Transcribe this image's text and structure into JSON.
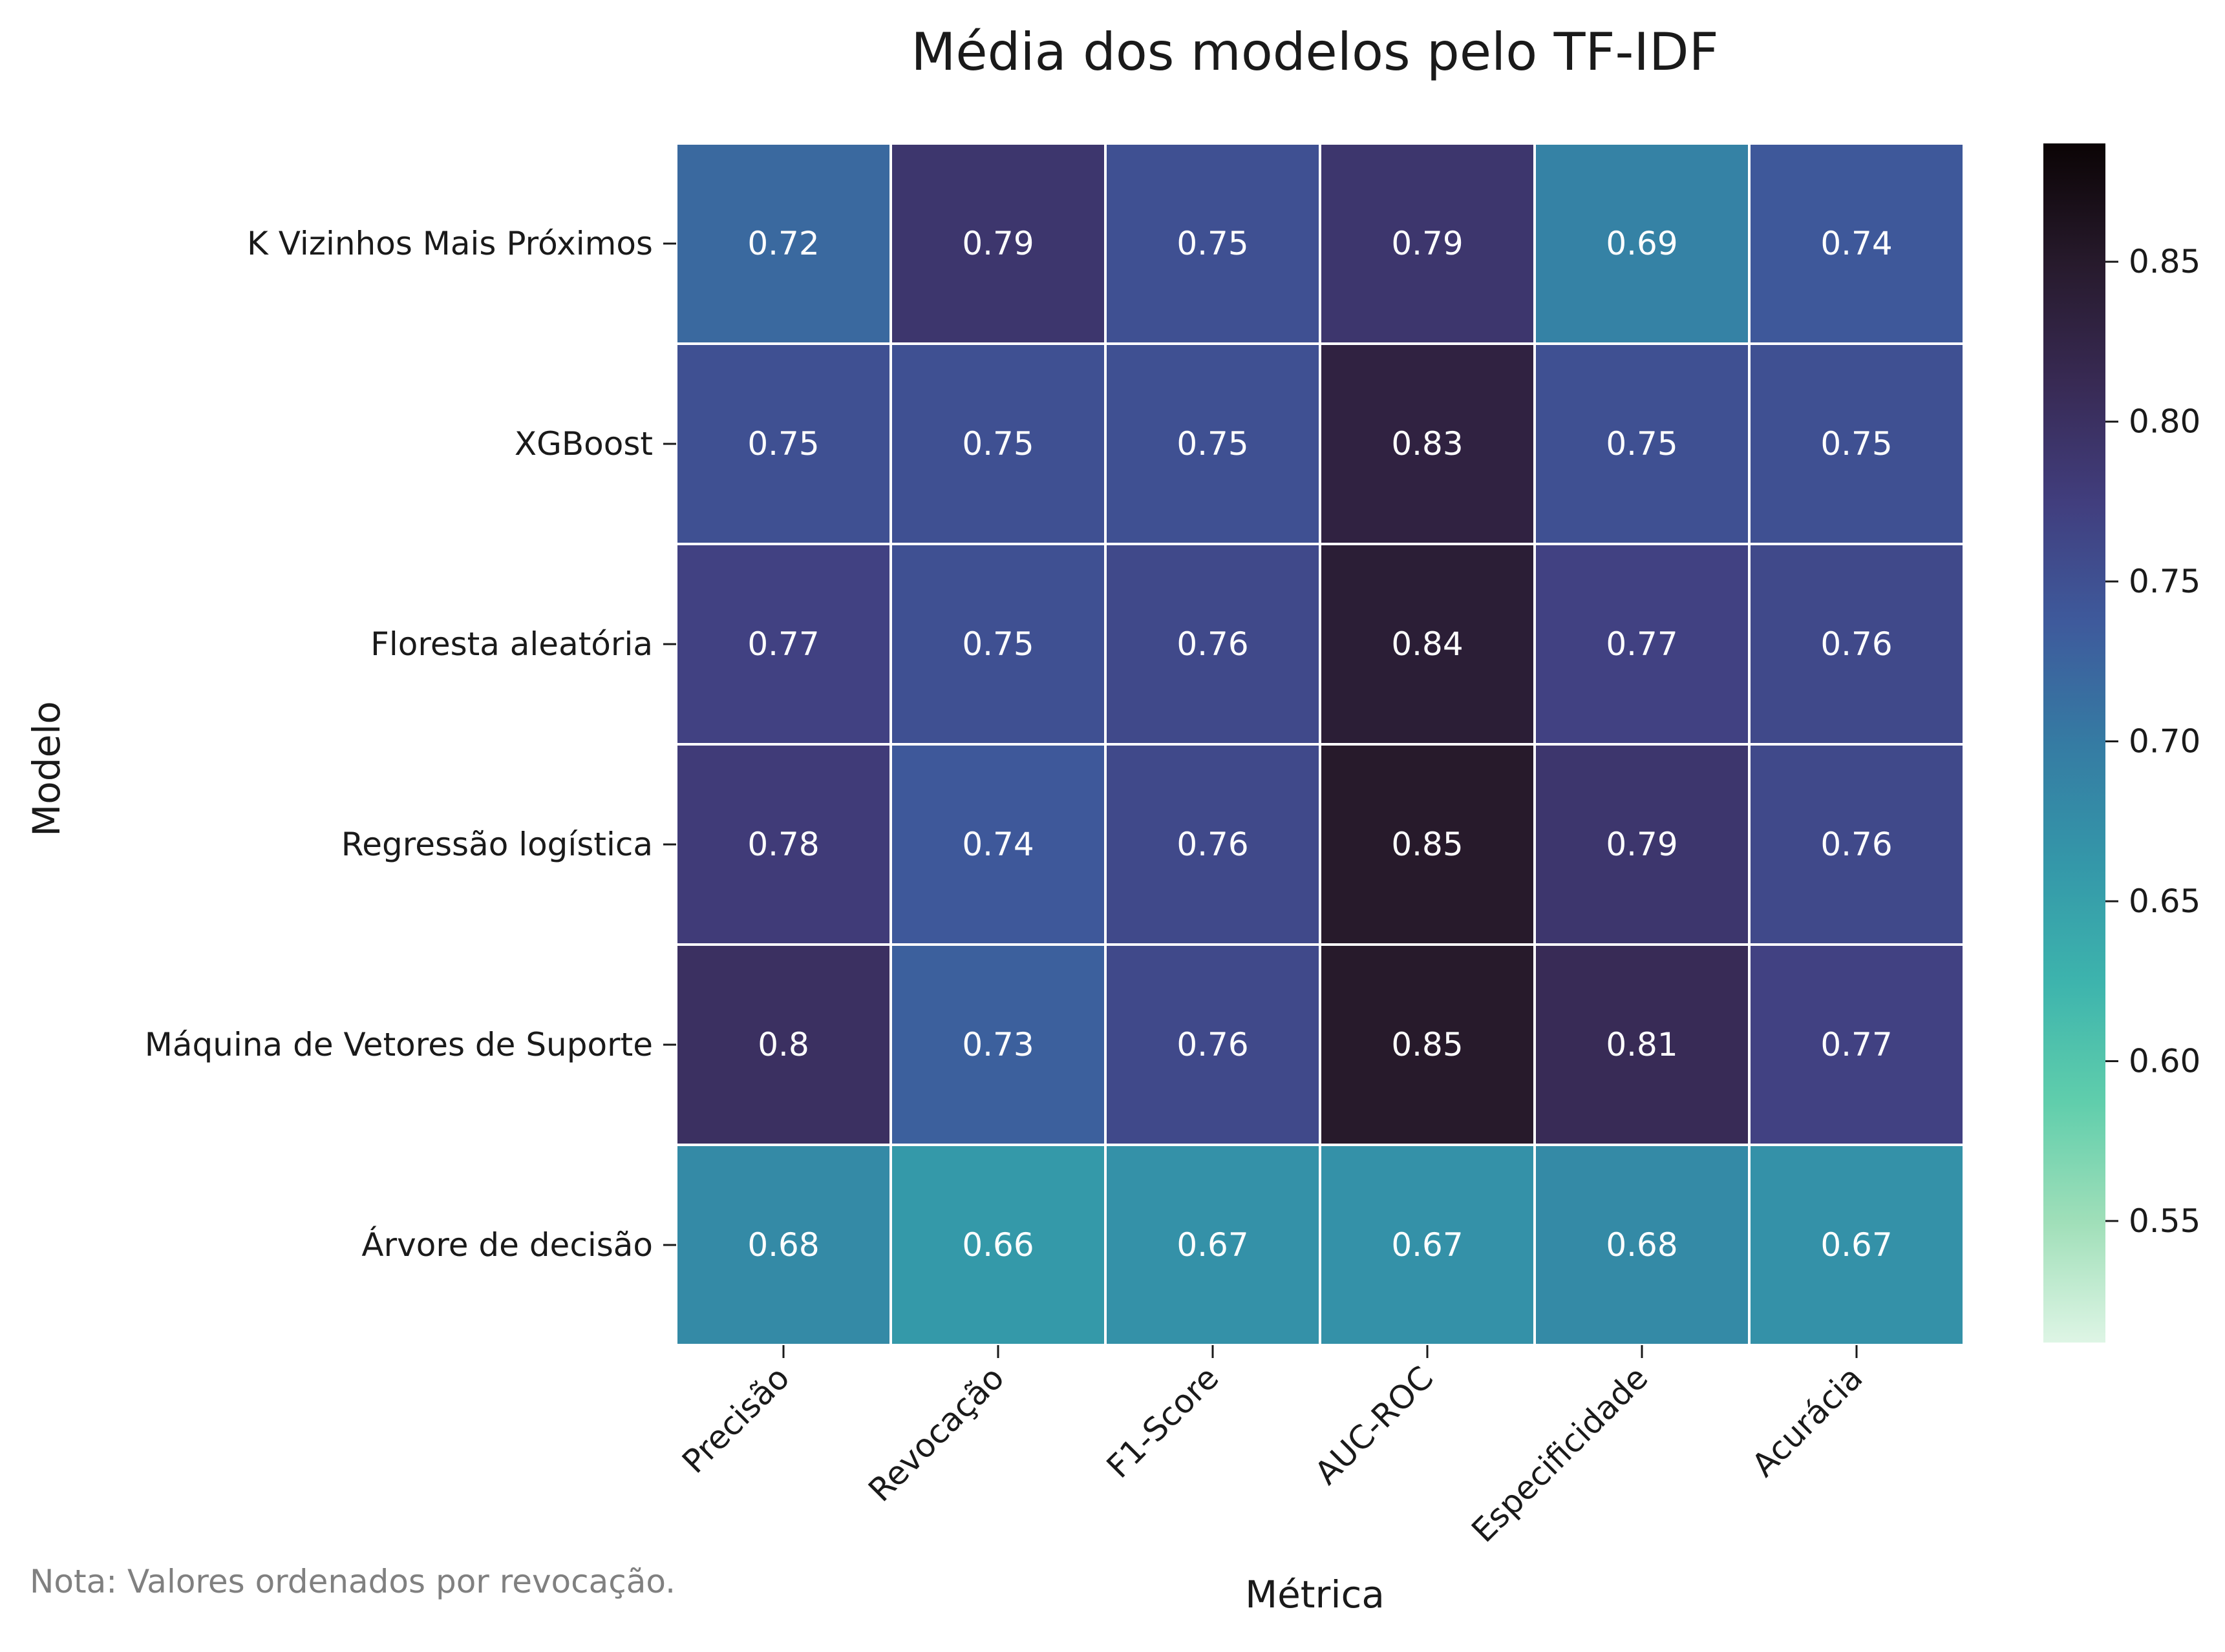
{
  "chart_data": {
    "type": "heatmap",
    "title": "Média dos modelos pelo TF-IDF",
    "xlabel": "Métrica",
    "ylabel": "Modelo",
    "columns": [
      "Precisão",
      "Revocação",
      "F1-Score",
      "AUC-ROC",
      "Especificidade",
      "Acurácia"
    ],
    "rows": [
      "K Vizinhos Mais Próximos",
      "XGBoost",
      "Floresta aleatória",
      "Regressão logística",
      "Máquina de Vetores de Suporte",
      "Árvore de decisão"
    ],
    "values": [
      [
        0.72,
        0.79,
        0.75,
        0.79,
        0.69,
        0.74
      ],
      [
        0.75,
        0.75,
        0.75,
        0.83,
        0.75,
        0.75
      ],
      [
        0.77,
        0.75,
        0.76,
        0.84,
        0.77,
        0.76
      ],
      [
        0.78,
        0.74,
        0.76,
        0.85,
        0.79,
        0.76
      ],
      [
        0.8,
        0.73,
        0.76,
        0.85,
        0.81,
        0.77
      ],
      [
        0.68,
        0.66,
        0.67,
        0.67,
        0.68,
        0.67
      ]
    ],
    "value_labels": [
      [
        "0.72",
        "0.79",
        "0.75",
        "0.79",
        "0.69",
        "0.74"
      ],
      [
        "0.75",
        "0.75",
        "0.75",
        "0.83",
        "0.75",
        "0.75"
      ],
      [
        "0.77",
        "0.75",
        "0.76",
        "0.84",
        "0.77",
        "0.76"
      ],
      [
        "0.78",
        "0.74",
        "0.76",
        "0.85",
        "0.79",
        "0.76"
      ],
      [
        "0.8",
        "0.73",
        "0.76",
        "0.85",
        "0.81",
        "0.77"
      ],
      [
        "0.68",
        "0.66",
        "0.67",
        "0.67",
        "0.68",
        "0.67"
      ]
    ],
    "colorbar": {
      "vmin": 0.512,
      "vmax": 0.887,
      "ticks": [
        0.55,
        0.6,
        0.65,
        0.7,
        0.75,
        0.8,
        0.85
      ],
      "tick_labels": [
        "0.55",
        "0.60",
        "0.65",
        "0.70",
        "0.75",
        "0.80",
        "0.85"
      ],
      "colormap": "mako_r",
      "colors": [
        "#def5e5",
        "#a0dfb9",
        "#60ceac",
        "#3db4ad",
        "#3497a9",
        "#357ba3",
        "#3e5a9c",
        "#413e7e",
        "#382a54",
        "#271a2c",
        "#0b0405"
      ]
    },
    "note": "Nota: Valores ordenados por revocação."
  }
}
